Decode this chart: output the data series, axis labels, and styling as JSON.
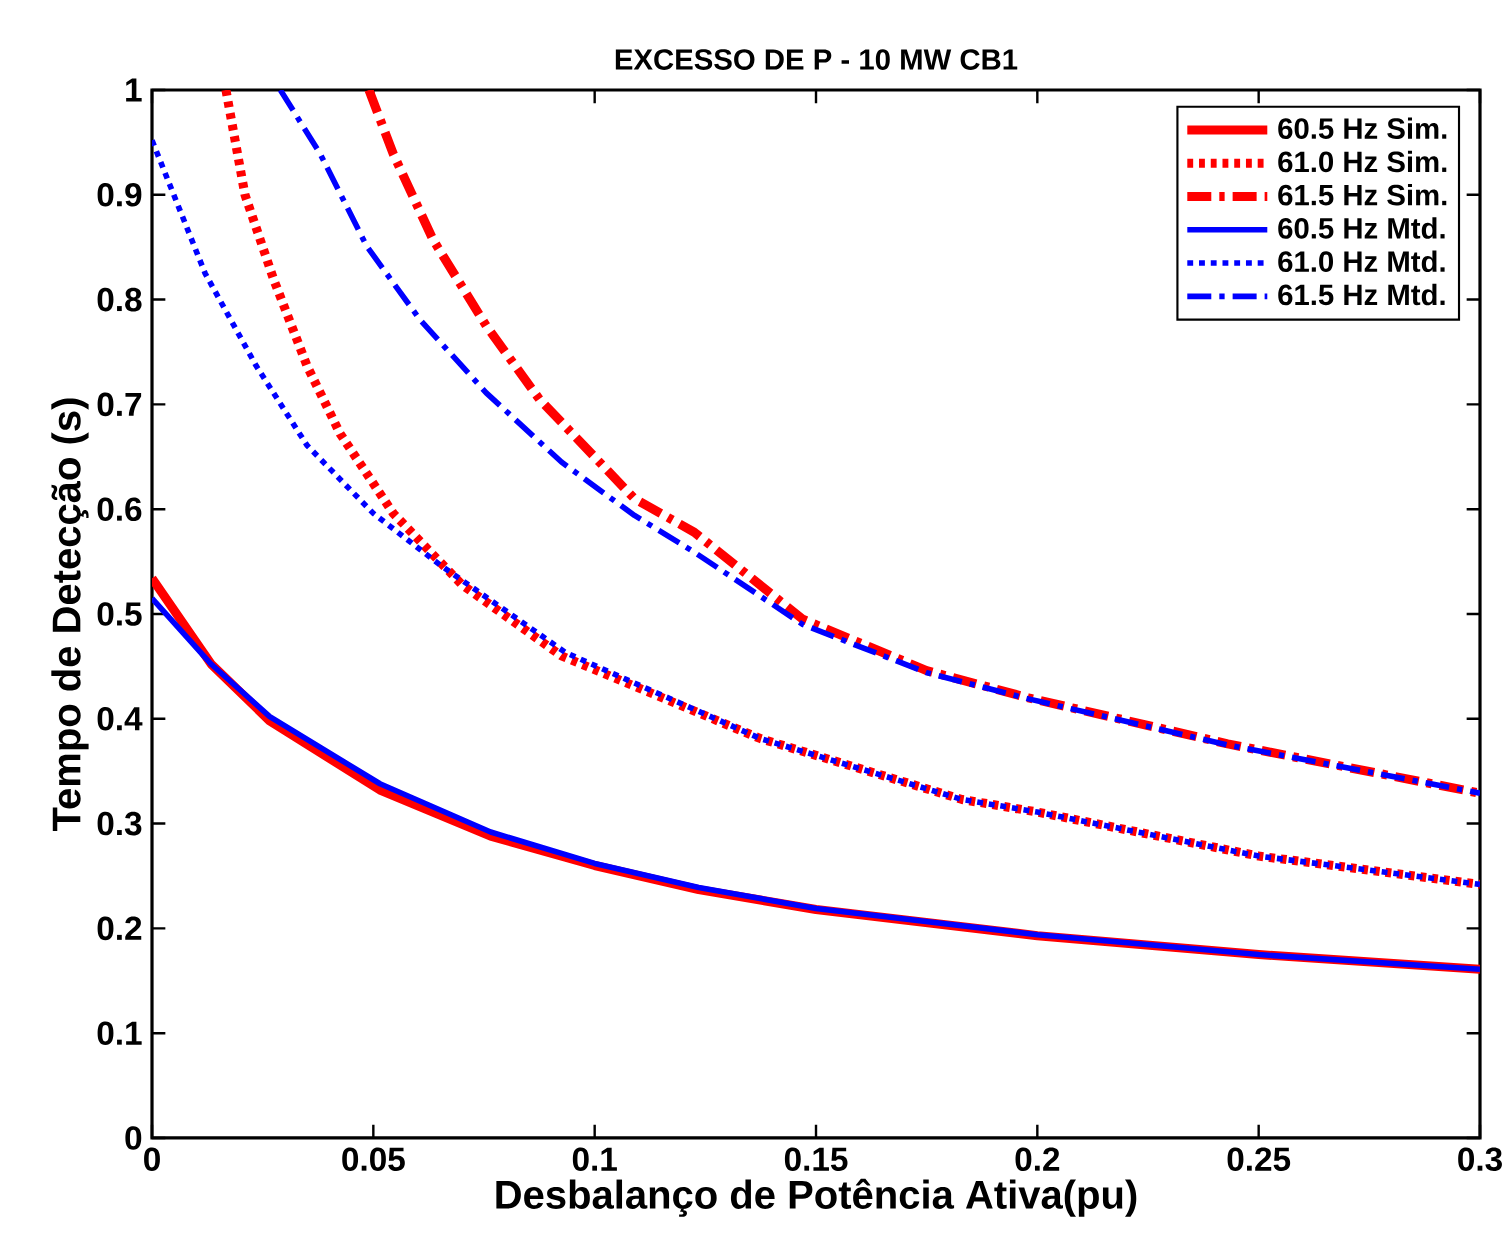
{
  "chart_data": {
    "type": "line",
    "title": "EXCESSO DE P - 10 MW CB1",
    "xlabel": "Desbalanço de Potência Ativa(pu)",
    "ylabel": "Tempo de Detecção (s)",
    "xlim": [
      0,
      0.3
    ],
    "ylim": [
      0,
      1
    ],
    "xticks": [
      0,
      0.05,
      0.1,
      0.15,
      0.2,
      0.25,
      0.3
    ],
    "yticks": [
      0,
      0.1,
      0.2,
      0.3,
      0.4,
      0.5,
      0.6,
      0.7,
      0.8,
      0.9,
      1
    ],
    "grid": false,
    "legend": "top right",
    "marker": "none",
    "series": [
      {
        "name": "60.5 Hz Sim.",
        "color": "#ff0000",
        "line_style": "solid",
        "x": [
          0,
          0.0134,
          0.0266,
          0.0515,
          0.0765,
          0.1,
          0.1235,
          0.15,
          0.2,
          0.25,
          0.3
        ],
        "values": [
          0.534,
          0.452,
          0.398,
          0.332,
          0.288,
          0.26,
          0.237,
          0.218,
          0.193,
          0.175,
          0.161
        ]
      },
      {
        "name": "61.0 Hz Sim.",
        "color": "#ff0000",
        "line_style": "dotted",
        "x": [
          0.0167,
          0.021,
          0.0275,
          0.035,
          0.0425,
          0.0545,
          0.07,
          0.0925,
          0.1375,
          0.183,
          0.2,
          0.25,
          0.3
        ],
        "values": [
          1,
          0.9,
          0.819,
          0.737,
          0.672,
          0.596,
          0.528,
          0.46,
          0.381,
          0.323,
          0.311,
          0.269,
          0.242
        ]
      },
      {
        "name": "61.5 Hz Sim.",
        "color": "#ff0000",
        "line_style": "dashdot",
        "x": [
          0.049,
          0.0545,
          0.0635,
          0.0755,
          0.0875,
          0.109,
          0.1225,
          0.147,
          0.175,
          0.198,
          0.243,
          0.3
        ],
        "values": [
          1,
          0.939,
          0.857,
          0.775,
          0.705,
          0.61,
          0.578,
          0.495,
          0.446,
          0.42,
          0.376,
          0.329
        ]
      },
      {
        "name": "60.5 Hz Mtd.",
        "color": "#0000ff",
        "line_style": "solid",
        "x": [
          0,
          0.0134,
          0.0266,
          0.0515,
          0.0765,
          0.1,
          0.1235,
          0.15,
          0.2,
          0.25,
          0.3
        ],
        "values": [
          0.515,
          0.452,
          0.402,
          0.338,
          0.292,
          0.262,
          0.239,
          0.219,
          0.194,
          0.175,
          0.161
        ]
      },
      {
        "name": "61.0 Hz Mtd.",
        "color": "#0000ff",
        "line_style": "dotted",
        "x": [
          0,
          0.012,
          0.0235,
          0.035,
          0.05,
          0.065,
          0.0935,
          0.1375,
          0.183,
          0.2,
          0.25,
          0.3
        ],
        "values": [
          0.952,
          0.825,
          0.737,
          0.661,
          0.596,
          0.547,
          0.463,
          0.381,
          0.323,
          0.311,
          0.269,
          0.242
        ]
      },
      {
        "name": "61.5 Hz Mtd.",
        "color": "#0000ff",
        "line_style": "dashdot",
        "x": [
          0.029,
          0.038,
          0.0485,
          0.0605,
          0.0755,
          0.0925,
          0.109,
          0.1225,
          0.147,
          0.175,
          0.198,
          0.243,
          0.3
        ],
        "values": [
          1,
          0.939,
          0.851,
          0.781,
          0.711,
          0.645,
          0.594,
          0.559,
          0.49,
          0.444,
          0.419,
          0.375,
          0.329
        ]
      }
    ]
  }
}
